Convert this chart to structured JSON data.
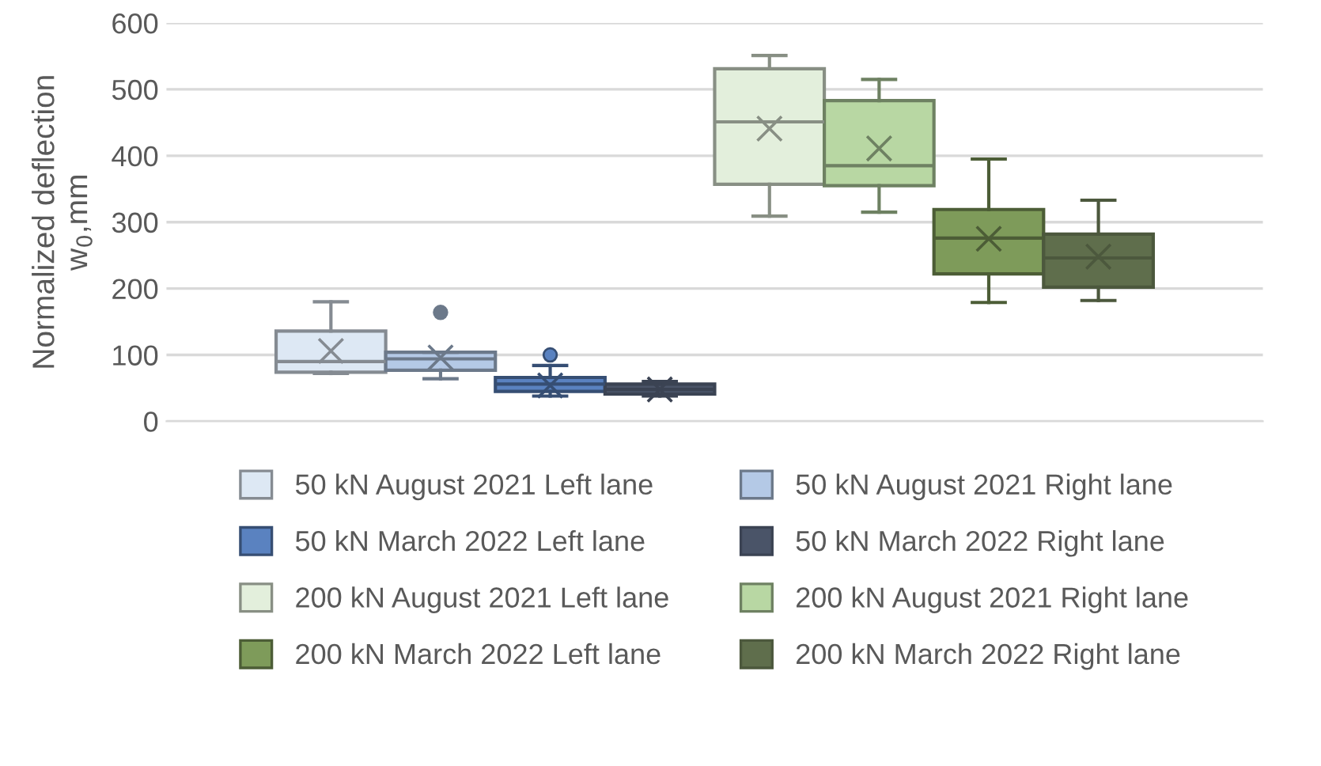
{
  "chart_data": {
    "type": "box",
    "ylabel": "Normalized deflection\nw$_{0}$,mm",
    "categories": [
      null
    ],
    "ylim": [
      0,
      600
    ],
    "yticks": [
      0,
      100,
      200,
      300,
      400,
      500,
      600
    ],
    "grid": "y",
    "legend": "bottom",
    "tick_labels": "y",
    "marker": "cross",
    "series": [
      {
        "name": "50 kN August 2021 Left lane",
        "color": "#dde8f4",
        "boxes": [
          {
            "low": 72,
            "q1": 74,
            "median": 90,
            "q3": 136,
            "high": 180,
            "mean": 106
          }
        ]
      },
      {
        "name": "50 kN August 2021 Right lane",
        "color": "#b4c9e6",
        "boxes": [
          {
            "low": 64,
            "q1": 77,
            "median": 94,
            "q3": 104,
            "high": 104,
            "mean": 96,
            "outliers": [
              164
            ]
          }
        ]
      },
      {
        "name": "50 kN March 2022 Left lane",
        "color": "#5a82c0",
        "boxes": [
          {
            "low": 38,
            "q1": 45,
            "median": 56,
            "q3": 66,
            "high": 84,
            "mean": 54,
            "outliers": [
              100
            ]
          }
        ]
      },
      {
        "name": "50 kN March 2022 Right lane",
        "color": "#4a5468",
        "boxes": [
          {
            "low": 38,
            "q1": 41,
            "median": 48,
            "q3": 56,
            "high": 60,
            "mean": 48
          }
        ]
      },
      {
        "name": "200 kN August 2021 Left lane",
        "color": "#e3efdc",
        "boxes": [
          {
            "low": 309,
            "q1": 357,
            "median": 451,
            "q3": 531,
            "high": 551,
            "mean": 441
          }
        ]
      },
      {
        "name": "200 kN August 2021 Right lane",
        "color": "#b8d7a3",
        "boxes": [
          {
            "low": 315,
            "q1": 355,
            "median": 385,
            "q3": 483,
            "high": 515,
            "mean": 411
          }
        ]
      },
      {
        "name": "200 kN March 2022 Left lane",
        "color": "#7e9b5a",
        "boxes": [
          {
            "low": 179,
            "q1": 222,
            "median": 276,
            "q3": 319,
            "high": 395,
            "mean": 275
          }
        ]
      },
      {
        "name": "200 kN March 2022 Right lane",
        "color": "#5f6e4c",
        "boxes": [
          {
            "low": 182,
            "q1": 202,
            "median": 246,
            "q3": 282,
            "high": 333,
            "mean": 248
          }
        ]
      }
    ]
  }
}
